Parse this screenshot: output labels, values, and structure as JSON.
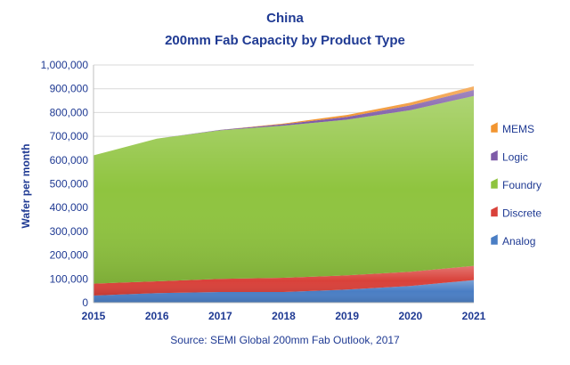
{
  "chart_data": {
    "type": "area",
    "stacked": true,
    "title": "China",
    "subtitle": "200mm Fab Capacity by Product Type",
    "xlabel": "",
    "ylabel": "Wafer per month",
    "source": "Source: SEMI Global 200mm Fab Outlook, 2017",
    "x": [
      2015,
      2016,
      2017,
      2018,
      2019,
      2020,
      2021
    ],
    "x_tick_labels": [
      "2015",
      "2016",
      "2017",
      "2018",
      "2019",
      "2020",
      "2021"
    ],
    "ylim": [
      0,
      1000000
    ],
    "y_tick_labels": [
      "0",
      "100,000",
      "200,000",
      "300,000",
      "400,000",
      "500,000",
      "600,000",
      "700,000",
      "800,000",
      "900,000",
      "1,000,000"
    ],
    "grid": true,
    "legend_position": "right",
    "series": [
      {
        "name": "Analog",
        "color": "#4A7EC4",
        "values": [
          30000,
          40000,
          45000,
          45000,
          55000,
          70000,
          95000
        ]
      },
      {
        "name": "Discrete",
        "color": "#D9413A",
        "values": [
          50000,
          50000,
          55000,
          60000,
          60000,
          60000,
          60000
        ]
      },
      {
        "name": "Foundry",
        "color": "#8FC43F",
        "values": [
          540000,
          600000,
          625000,
          640000,
          655000,
          680000,
          715000
        ]
      },
      {
        "name": "Logic",
        "color": "#7E5BA8",
        "values": [
          0,
          0,
          2000,
          6000,
          12000,
          20000,
          25000
        ]
      },
      {
        "name": "MEMS",
        "color": "#F29530",
        "values": [
          0,
          0,
          0,
          3000,
          8000,
          12000,
          15000
        ]
      }
    ],
    "legend_order": [
      "MEMS",
      "Logic",
      "Foundry",
      "Discrete",
      "Analog"
    ]
  }
}
